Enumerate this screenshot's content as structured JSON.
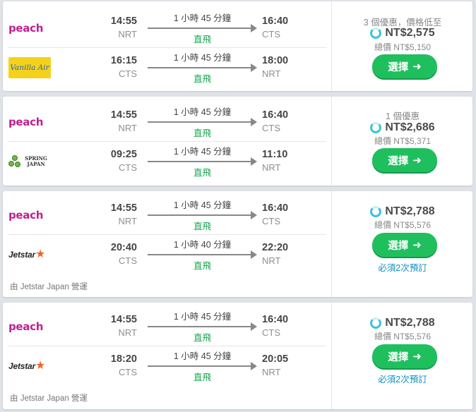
{
  "results": [
    {
      "legs": [
        {
          "airline": "peach",
          "logo_text": "peach",
          "dep_time": "14:55",
          "dep_airport": "NRT",
          "duration": "1 小時 45 分鐘",
          "stops": "直飛",
          "arr_time": "16:40",
          "arr_airport": "CTS"
        },
        {
          "airline": "vanilla",
          "logo_text": "Vanilla Air",
          "dep_time": "16:15",
          "dep_airport": "CTS",
          "duration": "1 小時 45 分鐘",
          "stops": "直飛",
          "arr_time": "18:00",
          "arr_airport": "NRT"
        }
      ],
      "deals": "3 個優惠，價格低至",
      "price": "NT$2,575",
      "total": "總價 NT$5,150",
      "select_label": "選擇",
      "note": ""
    },
    {
      "legs": [
        {
          "airline": "peach",
          "logo_text": "peach",
          "dep_time": "14:55",
          "dep_airport": "NRT",
          "duration": "1 小時 45 分鐘",
          "stops": "直飛",
          "arr_time": "16:40",
          "arr_airport": "CTS"
        },
        {
          "airline": "spring",
          "logo_text": "SPRING JAPAN",
          "dep_time": "09:25",
          "dep_airport": "CTS",
          "duration": "1 小時 45 分鐘",
          "stops": "直飛",
          "arr_time": "11:10",
          "arr_airport": "NRT"
        }
      ],
      "deals": "1 個優惠",
      "price": "NT$2,686",
      "total": "總價 NT$5,371",
      "select_label": "選擇",
      "note": ""
    },
    {
      "legs": [
        {
          "airline": "peach",
          "logo_text": "peach",
          "dep_time": "14:55",
          "dep_airport": "NRT",
          "duration": "1 小時 45 分鐘",
          "stops": "直飛",
          "arr_time": "16:40",
          "arr_airport": "CTS"
        },
        {
          "airline": "jetstar",
          "logo_text": "Jetstar",
          "dep_time": "20:40",
          "dep_airport": "CTS",
          "duration": "1 小時 40 分鐘",
          "stops": "直飛",
          "arr_time": "22:20",
          "arr_airport": "NRT"
        }
      ],
      "operated_by": "由 Jetstar Japan 營運",
      "deals": "",
      "price": "NT$2,788",
      "total": "總價 NT$5,576",
      "select_label": "選擇",
      "note": "必須2次預訂"
    },
    {
      "legs": [
        {
          "airline": "peach",
          "logo_text": "peach",
          "dep_time": "14:55",
          "dep_airport": "NRT",
          "duration": "1 小時 45 分鐘",
          "stops": "直飛",
          "arr_time": "16:40",
          "arr_airport": "CTS"
        },
        {
          "airline": "jetstar",
          "logo_text": "Jetstar",
          "dep_time": "18:20",
          "dep_airport": "CTS",
          "duration": "1 小時 45 分鐘",
          "stops": "直飛",
          "arr_time": "20:05",
          "arr_airport": "NRT"
        }
      ],
      "operated_by": "由 Jetstar Japan 營運",
      "deals": "",
      "price": "NT$2,788",
      "total": "總價 NT$5,576",
      "select_label": "選擇",
      "note": "必須2次預訂"
    }
  ],
  "colors": {
    "accent_green": "#1fbf5e",
    "nonstop_green": "#14a84b",
    "link_blue": "#0e8fc1",
    "peach_magenta": "#c21f8f",
    "jetstar_orange": "#f26522",
    "vanilla_yellow": "#f4d21c"
  },
  "icons": {
    "loading": "loading-spinner-icon",
    "select_arrow": "arrow-right-icon",
    "flight_arrow": "flight-arrow-icon",
    "jetstar_star": "star-icon"
  }
}
